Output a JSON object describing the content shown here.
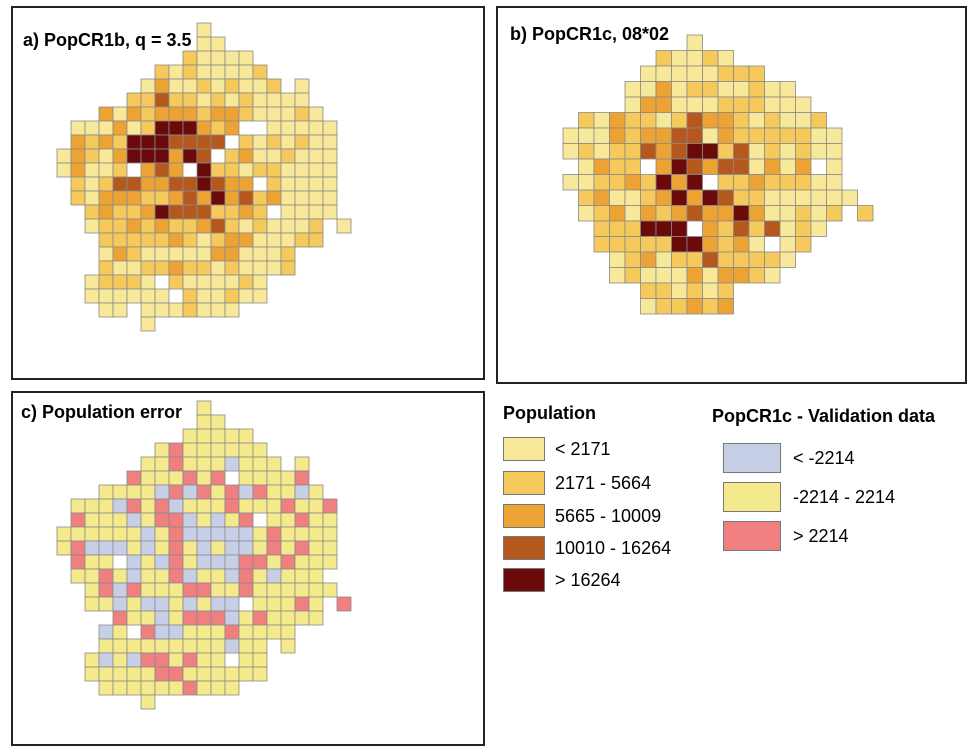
{
  "colors": {
    "pop": [
      "#f7e89a",
      "#f6c95c",
      "#eda333",
      "#b4581d",
      "#6b0a0a"
    ],
    "err": {
      "neg": "#c7cfe6",
      "mid": "#f4ea8c",
      "pos": "#f07f80"
    },
    "cell_border": "#8a8a8a",
    "frame": "#222222"
  },
  "panels": {
    "a": {
      "title": "a) PopCR1b, q = 3.5"
    },
    "b": {
      "title": "b) PopCR1c, 08*02"
    },
    "c": {
      "title": "c) Population error"
    }
  },
  "legend": {
    "population": {
      "title": "Population",
      "items": [
        {
          "label": "< 2171",
          "color": "#f7e89a"
        },
        {
          "label": "2171 - 5664",
          "color": "#f6c95c"
        },
        {
          "label": "5665 - 10009",
          "color": "#eda333"
        },
        {
          "label": "10010 - 16264",
          "color": "#b4581d"
        },
        {
          "label": "> 16264",
          "color": "#6b0a0a"
        }
      ]
    },
    "validation": {
      "title": "PopCR1c - Validation data",
      "items": [
        {
          "label": "< -2214",
          "color": "#c7cfe6"
        },
        {
          "label": "-2214 - 2214",
          "color": "#f4ea8c"
        },
        {
          "label": "> 2214",
          "color": "#f07f80"
        }
      ]
    }
  }
}
